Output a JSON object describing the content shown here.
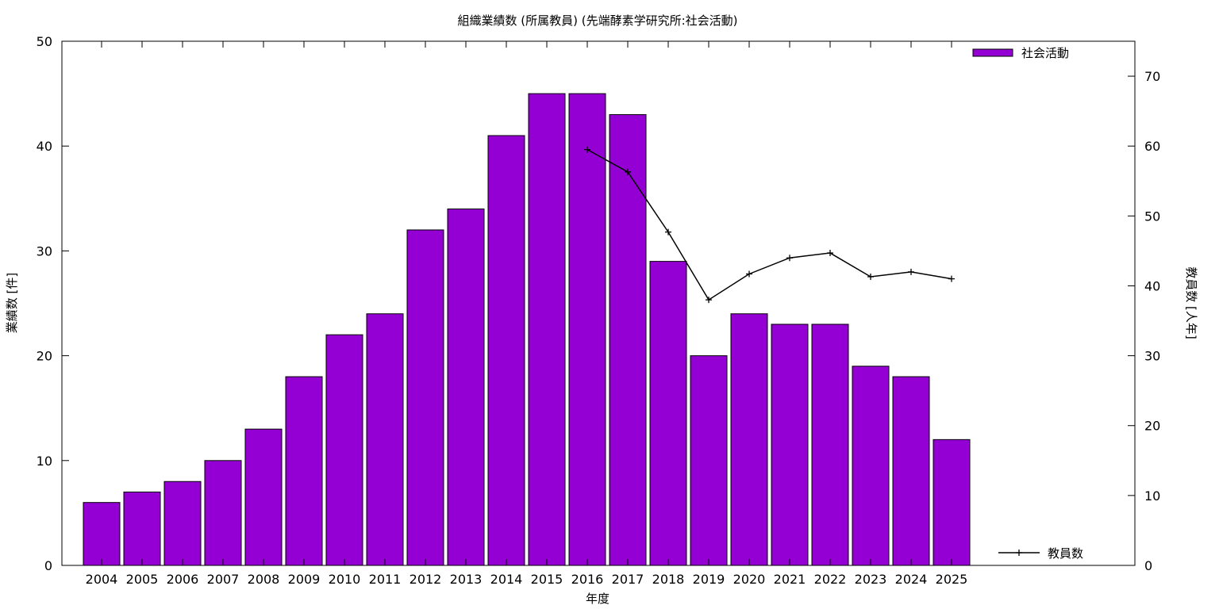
{
  "chart_data": {
    "type": "bar",
    "title": "組織業績数 (所属教員) (先端酵素学研究所:社会活動)",
    "xlabel": "年度",
    "ylabel": "業績数 [件]",
    "y2label": "教員数 [人年]",
    "categories": [
      "2004",
      "2005",
      "2006",
      "2007",
      "2008",
      "2009",
      "2010",
      "2011",
      "2012",
      "2013",
      "2014",
      "2015",
      "2016",
      "2017",
      "2018",
      "2019",
      "2020",
      "2021",
      "2022",
      "2023",
      "2024",
      "2025"
    ],
    "series": [
      {
        "name": "社会活動",
        "type": "bar",
        "axis": "left",
        "color": "#9400D3",
        "values": [
          6,
          7,
          8,
          10,
          13,
          18,
          22,
          24,
          32,
          34,
          41,
          45,
          45,
          43,
          29,
          20,
          24,
          23,
          23,
          19,
          18,
          12
        ]
      },
      {
        "name": "教員数",
        "type": "line",
        "axis": "right",
        "color": "#000000",
        "values": [
          null,
          null,
          null,
          null,
          null,
          null,
          null,
          null,
          null,
          null,
          null,
          null,
          59.5,
          56.3,
          47.7,
          38.0,
          41.7,
          44.0,
          44.7,
          41.3,
          42.0,
          41.0
        ]
      }
    ],
    "ylim": [
      0,
      50
    ],
    "yticks": [
      0,
      10,
      20,
      30,
      40,
      50
    ],
    "y2lim": [
      0,
      75
    ],
    "y2ticks": [
      0,
      10,
      20,
      30,
      40,
      50,
      60,
      70
    ],
    "grid": false,
    "legend": [
      "top-right",
      "bottom-right"
    ]
  }
}
